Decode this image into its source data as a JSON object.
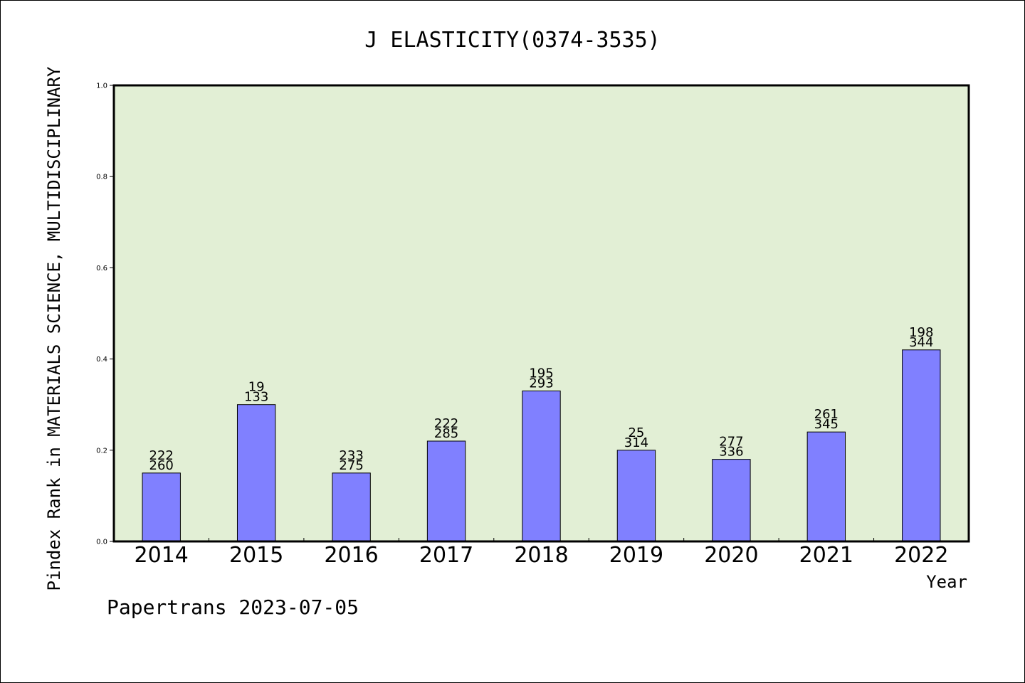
{
  "chart_data": {
    "type": "bar",
    "title": "J ELASTICITY(0374-3535)",
    "xlabel": "Year",
    "ylabel": "Pindex Rank in MATERIALS SCIENCE, MULTIDISCIPLINARY",
    "categories": [
      "2014",
      "2015",
      "2016",
      "2017",
      "2018",
      "2019",
      "2020",
      "2021",
      "2022"
    ],
    "values": [
      0.15,
      0.3,
      0.15,
      0.22,
      0.33,
      0.2,
      0.18,
      0.24,
      0.42
    ],
    "rank_labels": [
      "222",
      "19",
      "233",
      "222",
      "195",
      "25",
      "277",
      "261",
      "198"
    ],
    "total_labels": [
      "260",
      "133",
      "275",
      "285",
      "293",
      "314",
      "336",
      "345",
      "344"
    ],
    "ylim": [
      0,
      1.0
    ],
    "yticks": [
      "0.0",
      "0.2",
      "0.4",
      "0.6",
      "0.8",
      "1.0"
    ],
    "grid": false,
    "colors": {
      "plot_background": "#e2efd5",
      "bar_fill": "#8080ff",
      "bar_stroke": "#000000"
    }
  },
  "footer": {
    "credit": "Papertrans 2023-07-05"
  }
}
